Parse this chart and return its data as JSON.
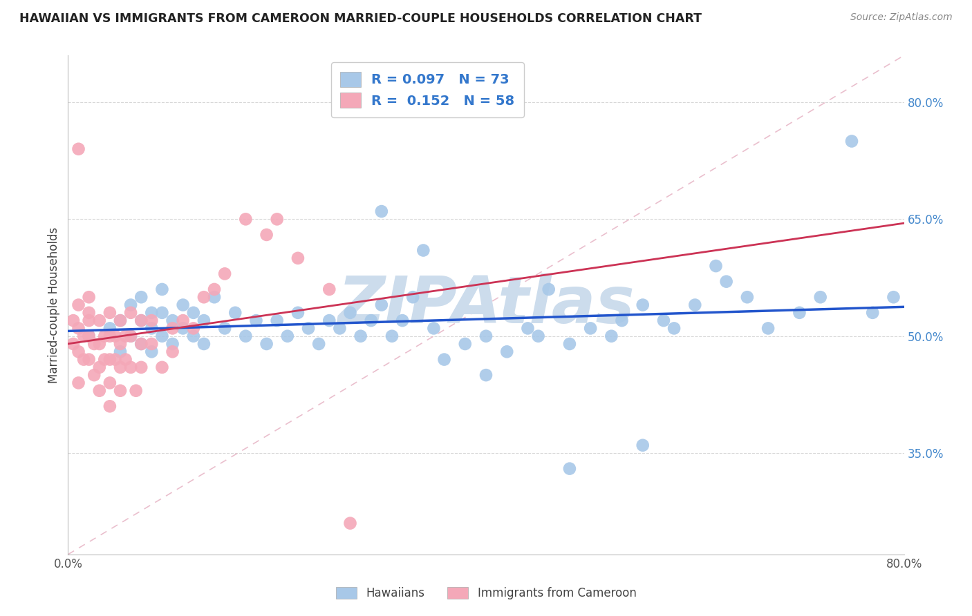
{
  "title": "HAWAIIAN VS IMMIGRANTS FROM CAMEROON MARRIED-COUPLE HOUSEHOLDS CORRELATION CHART",
  "source": "Source: ZipAtlas.com",
  "ylabel": "Married-couple Households",
  "xlim": [
    0.0,
    0.8
  ],
  "ylim": [
    0.22,
    0.86
  ],
  "yticks_right": [
    0.35,
    0.5,
    0.65,
    0.8
  ],
  "ytick_labels_right": [
    "35.0%",
    "50.0%",
    "65.0%",
    "80.0%"
  ],
  "hawaiians_R": 0.097,
  "hawaiians_N": 73,
  "cameroon_R": 0.152,
  "cameroon_N": 58,
  "hawaiians_color": "#a8c8e8",
  "cameroon_color": "#f4a8b8",
  "hawaiians_line_color": "#2255cc",
  "cameroon_line_color": "#cc3355",
  "diagonal_color": "#e8b8c8",
  "watermark": "ZIPAtlas",
  "watermark_color": "#ccdcec",
  "legend_label_hawaiians": "Hawaiians",
  "legend_label_cameroon": "Immigrants from Cameroon",
  "hawaiians_x": [
    0.02,
    0.04,
    0.05,
    0.05,
    0.06,
    0.06,
    0.07,
    0.07,
    0.07,
    0.08,
    0.08,
    0.08,
    0.09,
    0.09,
    0.09,
    0.1,
    0.1,
    0.11,
    0.11,
    0.12,
    0.12,
    0.13,
    0.13,
    0.14,
    0.15,
    0.16,
    0.17,
    0.18,
    0.19,
    0.2,
    0.21,
    0.22,
    0.23,
    0.24,
    0.25,
    0.26,
    0.27,
    0.28,
    0.29,
    0.3,
    0.31,
    0.32,
    0.33,
    0.35,
    0.36,
    0.38,
    0.4,
    0.42,
    0.44,
    0.45,
    0.46,
    0.48,
    0.5,
    0.52,
    0.53,
    0.55,
    0.57,
    0.58,
    0.6,
    0.62,
    0.63,
    0.65,
    0.67,
    0.7,
    0.72,
    0.75,
    0.77,
    0.79,
    0.3,
    0.34,
    0.4,
    0.48,
    0.55
  ],
  "hawaiians_y": [
    0.5,
    0.51,
    0.52,
    0.48,
    0.5,
    0.54,
    0.49,
    0.52,
    0.55,
    0.51,
    0.53,
    0.48,
    0.5,
    0.53,
    0.56,
    0.49,
    0.52,
    0.51,
    0.54,
    0.5,
    0.53,
    0.49,
    0.52,
    0.55,
    0.51,
    0.53,
    0.5,
    0.52,
    0.49,
    0.52,
    0.5,
    0.53,
    0.51,
    0.49,
    0.52,
    0.51,
    0.53,
    0.5,
    0.52,
    0.54,
    0.5,
    0.52,
    0.55,
    0.51,
    0.47,
    0.49,
    0.45,
    0.48,
    0.51,
    0.5,
    0.56,
    0.49,
    0.51,
    0.5,
    0.52,
    0.54,
    0.52,
    0.51,
    0.54,
    0.59,
    0.57,
    0.55,
    0.51,
    0.53,
    0.55,
    0.75,
    0.53,
    0.55,
    0.66,
    0.61,
    0.5,
    0.33,
    0.36
  ],
  "cameroon_x": [
    0.005,
    0.005,
    0.01,
    0.01,
    0.01,
    0.01,
    0.01,
    0.015,
    0.015,
    0.02,
    0.02,
    0.02,
    0.02,
    0.02,
    0.025,
    0.025,
    0.03,
    0.03,
    0.03,
    0.03,
    0.035,
    0.035,
    0.04,
    0.04,
    0.04,
    0.04,
    0.04,
    0.045,
    0.045,
    0.05,
    0.05,
    0.05,
    0.05,
    0.055,
    0.055,
    0.06,
    0.06,
    0.06,
    0.065,
    0.07,
    0.07,
    0.07,
    0.08,
    0.08,
    0.09,
    0.1,
    0.1,
    0.11,
    0.12,
    0.13,
    0.14,
    0.15,
    0.17,
    0.19,
    0.2,
    0.22,
    0.25,
    0.27
  ],
  "cameroon_y": [
    0.52,
    0.49,
    0.74,
    0.54,
    0.51,
    0.48,
    0.44,
    0.5,
    0.47,
    0.53,
    0.5,
    0.47,
    0.55,
    0.52,
    0.49,
    0.45,
    0.52,
    0.49,
    0.46,
    0.43,
    0.5,
    0.47,
    0.53,
    0.5,
    0.47,
    0.44,
    0.41,
    0.5,
    0.47,
    0.52,
    0.49,
    0.46,
    0.43,
    0.5,
    0.47,
    0.53,
    0.5,
    0.46,
    0.43,
    0.52,
    0.49,
    0.46,
    0.52,
    0.49,
    0.46,
    0.51,
    0.48,
    0.52,
    0.51,
    0.55,
    0.56,
    0.58,
    0.65,
    0.63,
    0.65,
    0.6,
    0.56,
    0.26
  ]
}
